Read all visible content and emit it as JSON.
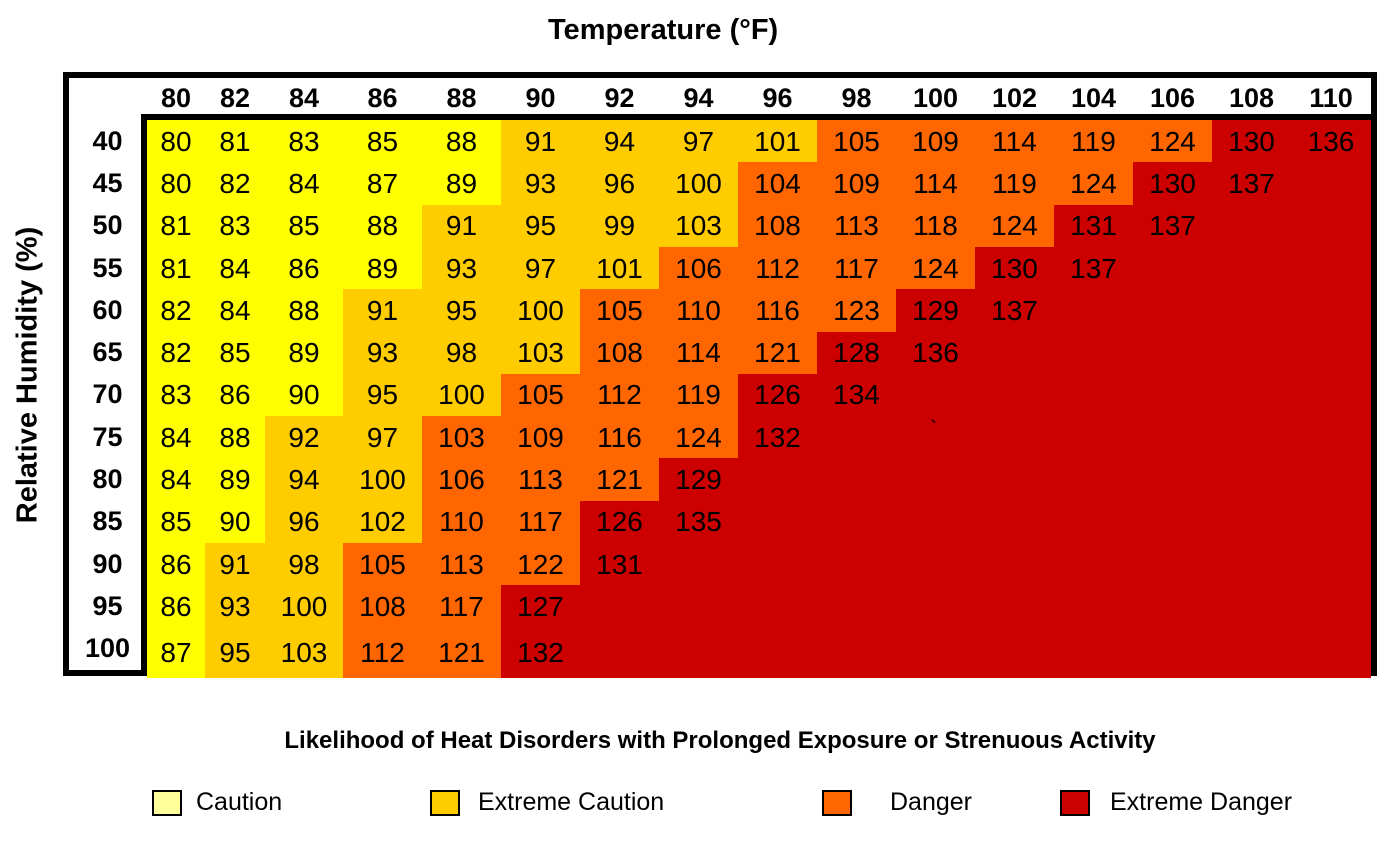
{
  "chart_data": {
    "type": "heatmap",
    "title": "Temperature (°F)",
    "title_parts": {
      "text": "Temperature (",
      "sup": "o",
      "unit": "F)"
    },
    "xlabel": "Temperature (°F)",
    "ylabel": "Relative Humidity (%)",
    "x": [
      "80",
      "82",
      "84",
      "86",
      "88",
      "90",
      "92",
      "94",
      "96",
      "98",
      "100",
      "102",
      "104",
      "106",
      "108",
      "110"
    ],
    "y": [
      "40",
      "45",
      "50",
      "55",
      "60",
      "65",
      "70",
      "75",
      "80",
      "85",
      "90",
      "95",
      "100"
    ],
    "values": [
      [
        80,
        81,
        83,
        85,
        88,
        91,
        94,
        97,
        101,
        105,
        109,
        114,
        119,
        124,
        130,
        136
      ],
      [
        80,
        82,
        84,
        87,
        89,
        93,
        96,
        100,
        104,
        109,
        114,
        119,
        124,
        130,
        137
      ],
      [
        81,
        83,
        85,
        88,
        91,
        95,
        99,
        103,
        108,
        113,
        118,
        124,
        131,
        137
      ],
      [
        81,
        84,
        86,
        89,
        93,
        97,
        101,
        106,
        112,
        117,
        124,
        130,
        137
      ],
      [
        82,
        84,
        88,
        91,
        95,
        100,
        105,
        110,
        116,
        123,
        129,
        137
      ],
      [
        82,
        85,
        89,
        93,
        98,
        103,
        108,
        114,
        121,
        128,
        136
      ],
      [
        83,
        86,
        90,
        95,
        100,
        105,
        112,
        119,
        126,
        134
      ],
      [
        84,
        88,
        92,
        97,
        103,
        109,
        116,
        124,
        132
      ],
      [
        84,
        89,
        94,
        100,
        106,
        113,
        121,
        129
      ],
      [
        85,
        90,
        96,
        102,
        110,
        117,
        126,
        135
      ],
      [
        86,
        91,
        98,
        105,
        113,
        122,
        131
      ],
      [
        86,
        93,
        100,
        108,
        117,
        127
      ],
      [
        87,
        95,
        103,
        112,
        121,
        132
      ]
    ],
    "categories_grid": [
      "0000011112222233",
      "0000011122222333",
      "0000111122223333",
      "0000111222233333",
      "0001112222333333",
      "0001112223333333",
      "0001122233333333",
      "0011222233333333",
      "0011222333333333",
      "0011223333333333",
      "0112223333333333",
      "0112233333333333",
      "0112233333333333"
    ],
    "cell_colors": [
      "#ffff00",
      "#ffcc00",
      "#ff6600",
      "#cc0000"
    ],
    "stray_mark": "`",
    "subtitle": "Likelihood of Heat Disorders with Prolonged Exposure or Strenuous Activity",
    "legend": [
      {
        "label": "Caution",
        "color": "#ffff99"
      },
      {
        "label": "Extreme Caution",
        "color": "#ffcc00"
      },
      {
        "label": "Danger",
        "color": "#ff6600"
      },
      {
        "label": "Extreme Danger",
        "color": "#cc0000"
      }
    ],
    "legend_placement": "bottom",
    "grid": false
  }
}
